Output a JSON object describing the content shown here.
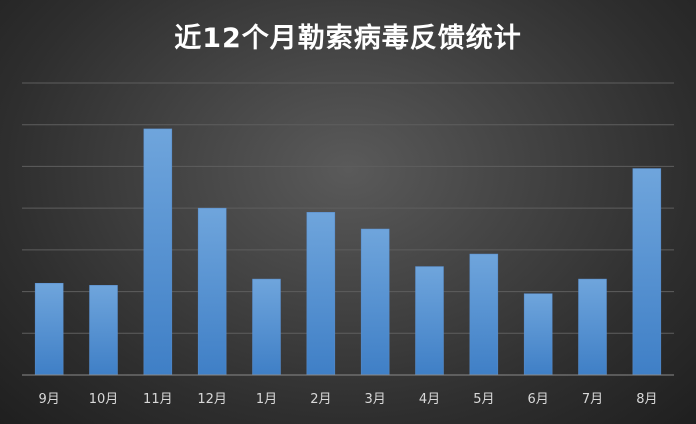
{
  "chart_data": {
    "type": "bar",
    "title": "近12个月勒索病毒反馈统计",
    "categories": [
      "9月",
      "10月",
      "11月",
      "12月",
      "1月",
      "2月",
      "3月",
      "4月",
      "5月",
      "6月",
      "7月",
      "8月"
    ],
    "values": [
      22,
      21.5,
      59,
      40,
      23,
      39,
      35,
      26,
      29,
      19.5,
      23,
      49.5
    ],
    "ylim": [
      0,
      70
    ],
    "grid": true,
    "legend": "none",
    "colors": {
      "bar_top": "#6fa5dc",
      "bar_bottom": "#3f7fc6",
      "grid": "#5e5e5e",
      "axis": "#8a8a8a"
    }
  }
}
